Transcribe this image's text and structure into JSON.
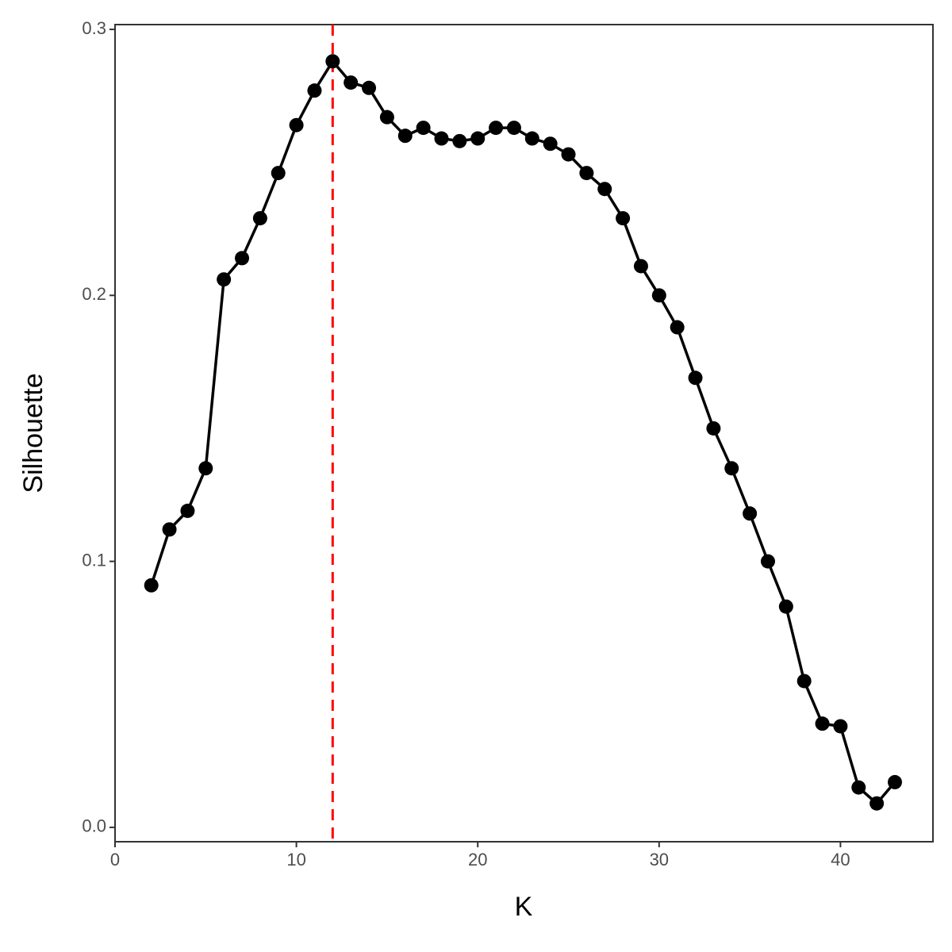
{
  "chart_data": {
    "type": "line",
    "x_label": "K",
    "y_label": "Silhouette",
    "x": [
      2,
      3,
      4,
      5,
      6,
      7,
      8,
      9,
      10,
      11,
      12,
      13,
      14,
      15,
      16,
      17,
      18,
      19,
      20,
      21,
      22,
      23,
      24,
      25,
      26,
      27,
      28,
      29,
      30,
      31,
      32,
      33,
      34,
      35,
      36,
      37,
      38,
      39,
      40,
      41,
      42,
      43
    ],
    "series": [
      {
        "color": "#000000",
        "values": [
          0.091,
          0.112,
          0.119,
          0.135,
          0.206,
          0.214,
          0.229,
          0.246,
          0.264,
          0.277,
          0.288,
          0.28,
          0.278,
          0.267,
          0.26,
          0.263,
          0.259,
          0.258,
          0.259,
          0.263,
          0.263,
          0.259,
          0.257,
          0.253,
          0.246,
          0.24,
          0.229,
          0.211,
          0.2,
          0.188,
          0.169,
          0.15,
          0.135,
          0.118,
          0.1,
          0.083,
          0.055,
          0.039,
          0.038,
          0.015,
          0.009,
          0.017
        ]
      }
    ],
    "vline": {
      "x": 12,
      "color": "#ff0000"
    },
    "xlim": [
      0,
      45.1
    ],
    "ylim": [
      -0.0054,
      0.3018
    ],
    "xticks": [
      0,
      10,
      20,
      30,
      40
    ],
    "yticks": [
      {
        "value": 0,
        "label": "0.0"
      },
      0.1,
      0.2,
      0.3
    ],
    "grid": false
  }
}
